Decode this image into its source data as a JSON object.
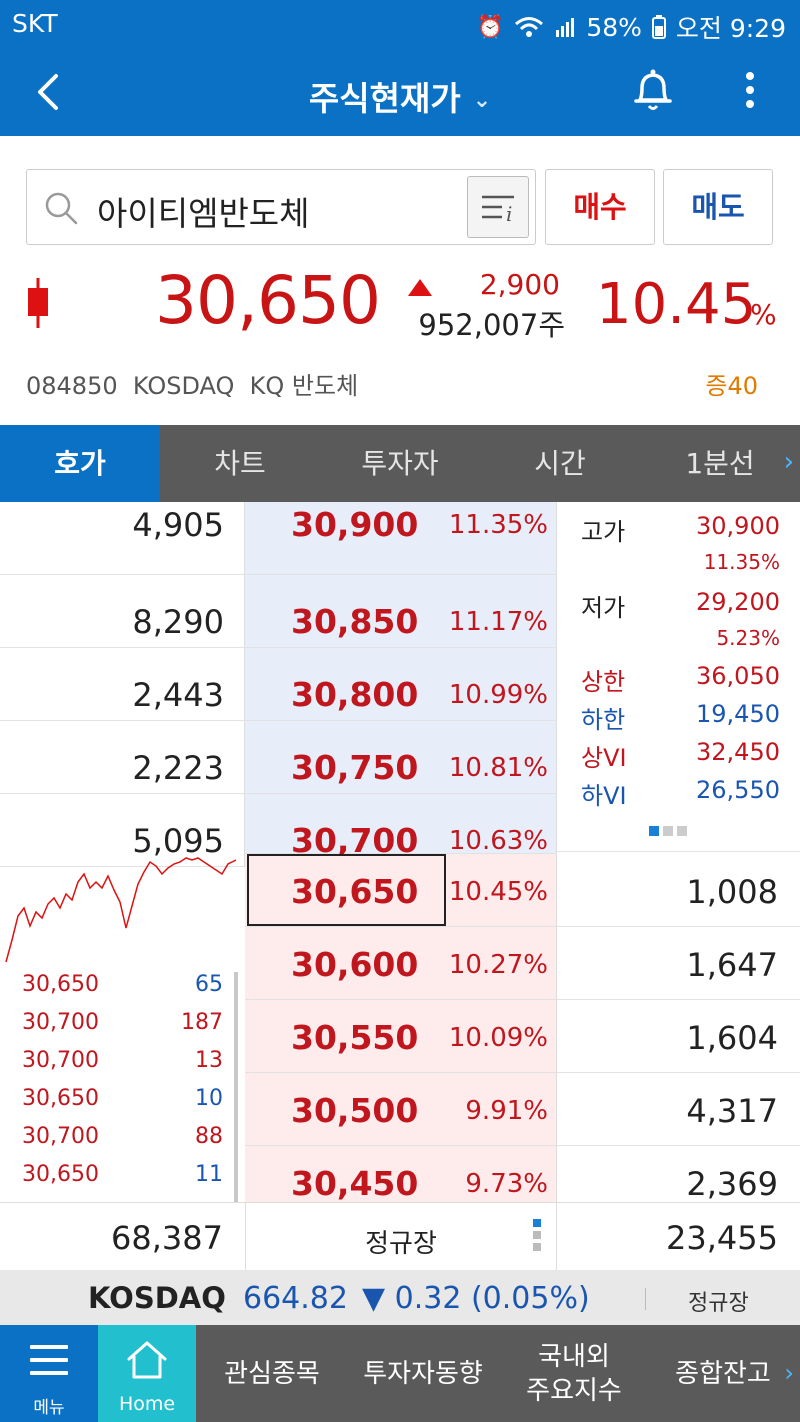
{
  "status_bar": {
    "carrier": "SKT",
    "battery": "58%",
    "time": "오전 9:29"
  },
  "header": {
    "title": "주식현재가"
  },
  "search": {
    "stock_name": "아이티엠반도체"
  },
  "buttons": {
    "buy": "매수",
    "sell": "매도"
  },
  "quote": {
    "price": "30,650",
    "change": "2,900",
    "volume": "952,007주",
    "change_pct": "10.45",
    "pct_sign": "%",
    "code": "084850",
    "market": "KOSDAQ",
    "sector": "KQ 반도체",
    "margin": "증40"
  },
  "tabs": [
    "호가",
    "차트",
    "투자자",
    "시간",
    "1분선"
  ],
  "asks": [
    {
      "qty": "4,905",
      "price": "30,900",
      "pct": "11.35%"
    },
    {
      "qty": "8,290",
      "price": "30,850",
      "pct": "11.17%"
    },
    {
      "qty": "2,443",
      "price": "30,800",
      "pct": "10.99%"
    },
    {
      "qty": "2,223",
      "price": "30,750",
      "pct": "10.81%"
    },
    {
      "qty": "5,095",
      "price": "30,700",
      "pct": "10.63%"
    }
  ],
  "bids": [
    {
      "price": "30,650",
      "pct": "10.45%",
      "qty": "1,008"
    },
    {
      "price": "30,600",
      "pct": "10.27%",
      "qty": "1,647"
    },
    {
      "price": "30,550",
      "pct": "10.09%",
      "qty": "1,604"
    },
    {
      "price": "30,500",
      "pct": "9.91%",
      "qty": "4,317"
    },
    {
      "price": "30,450",
      "pct": "9.73%",
      "qty": "2,369"
    }
  ],
  "info": {
    "high_label": "고가",
    "high": "30,900",
    "high_pct": "11.35%",
    "low_label": "저가",
    "low": "29,200",
    "low_pct": "5.23%",
    "upper_label": "상한",
    "upper": "36,050",
    "lower_label": "하한",
    "lower": "19,450",
    "vi_up_label": "상VI",
    "vi_up": "32,450",
    "vi_down_label": "하VI",
    "vi_down": "26,550"
  },
  "ticks": [
    {
      "price": "30,650",
      "qty": "65",
      "color": "#1a56b0"
    },
    {
      "price": "30,700",
      "qty": "187",
      "color": "#c0161e"
    },
    {
      "price": "30,700",
      "qty": "13",
      "color": "#c0161e"
    },
    {
      "price": "30,650",
      "qty": "10",
      "color": "#1a56b0"
    },
    {
      "price": "30,700",
      "qty": "88",
      "color": "#c0161e"
    },
    {
      "price": "30,650",
      "qty": "11",
      "color": "#1a56b0"
    }
  ],
  "summary": {
    "ask_total": "68,387",
    "session": "정규장",
    "bid_total": "23,455"
  },
  "index_bar": {
    "name": "KOSDAQ",
    "value": "664.82",
    "change": "▼ 0.32 (0.05%)",
    "session": "정규장"
  },
  "bottom_nav": {
    "menu": "메뉴",
    "home": "Home",
    "items": [
      "관심종목",
      "투자자동향",
      "국내외\n주요지수",
      "종합잔고"
    ]
  },
  "colors": {
    "brand_blue": "#0a71c5",
    "up_red": "#c81414",
    "down_blue": "#1a56b0",
    "home_teal": "#22c0cf"
  }
}
